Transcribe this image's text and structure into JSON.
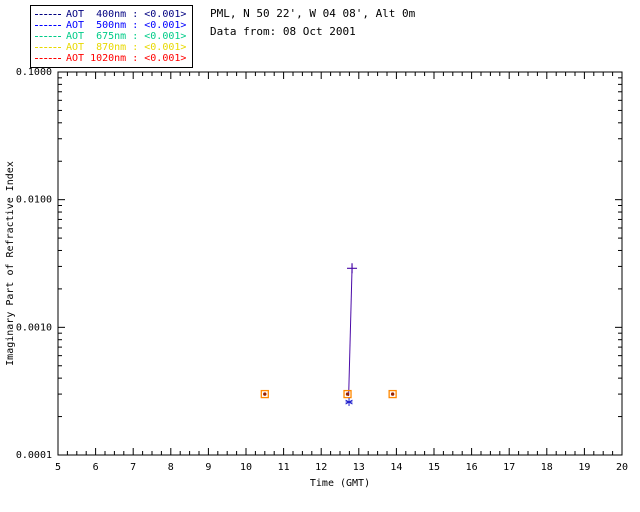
{
  "header": {
    "line1": "PML, N 50 22', W 04 08', Alt 0m",
    "line2": "Data from: 08 Oct 2001"
  },
  "legend": {
    "entries": [
      {
        "label": "AOT  400nm : <0.001>",
        "color": "#000080"
      },
      {
        "label": "AOT  500nm : <0.001>",
        "color": "#0000ff"
      },
      {
        "label": "AOT  675nm : <0.001>",
        "color": "#00cc88"
      },
      {
        "label": "AOT  870nm : <0.001>",
        "color": "#e8d800"
      },
      {
        "label": "AOT 1020nm : <0.001>",
        "color": "#ff0000"
      }
    ]
  },
  "chart_data": {
    "type": "scatter",
    "title": "",
    "xlabel": "Time (GMT)",
    "ylabel": "Imaginary Part of Refractive Index",
    "xlim": [
      5,
      20
    ],
    "ylim": [
      0.0001,
      0.1
    ],
    "x_scale": "linear",
    "y_scale": "log",
    "x_ticks": [
      5,
      6,
      7,
      8,
      9,
      10,
      11,
      12,
      13,
      14,
      15,
      16,
      17,
      18,
      19,
      20
    ],
    "x_minor_step": 0.25,
    "y_ticks": [
      {
        "value": 0.1,
        "label": "0.1000"
      },
      {
        "value": 0.01,
        "label": "0.0100"
      },
      {
        "value": 0.001,
        "label": "0.0010"
      },
      {
        "value": 0.0001,
        "label": "0.0001"
      }
    ],
    "grid": false,
    "legend_position": "top-left-outside",
    "series": [
      {
        "name": "aot-line-to-peak",
        "marker": "none",
        "line": true,
        "color": "#4b0ba8",
        "points": [
          [
            12.73,
            0.00029
          ],
          [
            12.82,
            0.0029
          ]
        ]
      },
      {
        "name": "peak-plus-marker",
        "marker": "plus",
        "line": false,
        "color": "#4b0ba8",
        "points": [
          [
            12.82,
            0.0029
          ]
        ]
      },
      {
        "name": "square-markers",
        "marker": "square",
        "line": false,
        "color": "#ff8800",
        "inner_color": "#992200",
        "points": [
          [
            10.5,
            0.0003
          ],
          [
            12.7,
            0.0003
          ],
          [
            13.9,
            0.0003
          ]
        ]
      },
      {
        "name": "asterisk-marker",
        "marker": "asterisk",
        "line": false,
        "color": "#2222cc",
        "points": [
          [
            12.74,
            0.00026
          ]
        ]
      }
    ]
  }
}
